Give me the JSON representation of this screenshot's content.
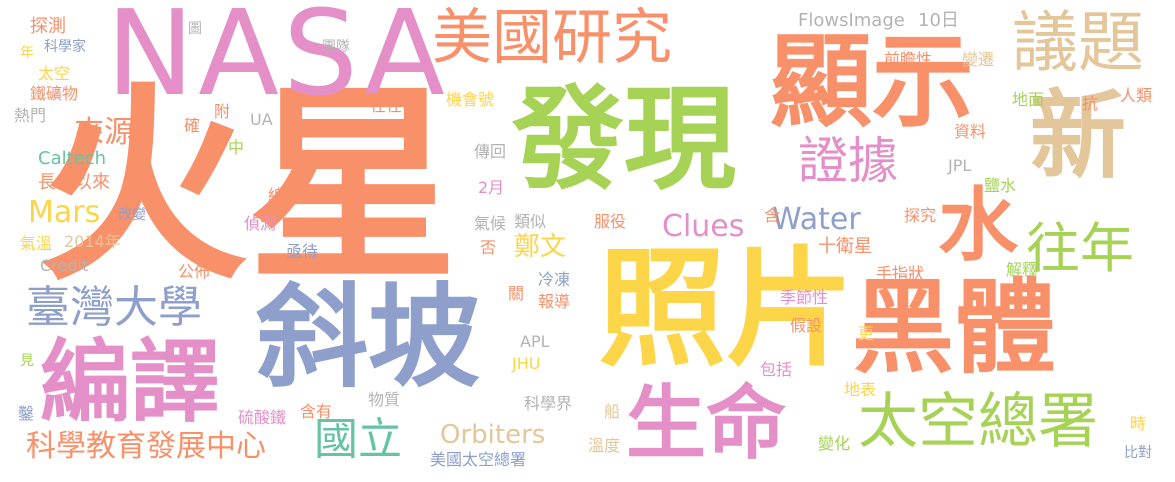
{
  "colors": {
    "orange": "#f8906a",
    "pink": "#e48fc8",
    "green": "#a6d356",
    "yellow": "#fcd548",
    "blue": "#8e9fcb",
    "tan": "#e3c699",
    "teal": "#66c3a5",
    "gray": "#b3b3b3"
  },
  "words": [
    {
      "text": "火星",
      "color": "orange"
    },
    {
      "text": "NASA",
      "color": "pink"
    },
    {
      "text": "發現",
      "color": "green"
    },
    {
      "text": "照片",
      "color": "yellow"
    },
    {
      "text": "斜坡",
      "color": "blue"
    },
    {
      "text": "顯示",
      "color": "orange"
    },
    {
      "text": "黑體",
      "color": "orange"
    },
    {
      "text": "新",
      "color": "tan"
    },
    {
      "text": "水",
      "color": "orange"
    },
    {
      "text": "美國研究",
      "color": "orange"
    },
    {
      "text": "議題",
      "color": "tan"
    },
    {
      "text": "生命",
      "color": "pink"
    },
    {
      "text": "編譯",
      "color": "pink"
    },
    {
      "text": "太空總署",
      "color": "green"
    },
    {
      "text": "往年",
      "color": "green"
    },
    {
      "text": "證據",
      "color": "pink"
    },
    {
      "text": "臺灣大學",
      "color": "blue"
    },
    {
      "text": "國立",
      "color": "teal"
    },
    {
      "text": "科學教育發展中心",
      "color": "orange"
    },
    {
      "text": "Water",
      "color": "blue"
    },
    {
      "text": "Clues",
      "color": "pink"
    },
    {
      "text": "Orbiters",
      "color": "tan"
    },
    {
      "text": "來源",
      "color": "orange"
    },
    {
      "text": "Mars",
      "color": "yellow"
    },
    {
      "text": "鄭文",
      "color": "yellow"
    },
    {
      "text": "FlowsImage",
      "color": "gray"
    },
    {
      "text": "10日",
      "color": "gray"
    },
    {
      "text": "十衛星",
      "color": "orange"
    },
    {
      "text": "Caltech",
      "color": "teal"
    },
    {
      "text": "長久以來",
      "color": "orange"
    },
    {
      "text": "熱門",
      "color": "gray"
    },
    {
      "text": "鐵礦物",
      "color": "orange"
    },
    {
      "text": "太空",
      "color": "yellow"
    },
    {
      "text": "科學家",
      "color": "blue"
    },
    {
      "text": "年",
      "color": "yellow"
    },
    {
      "text": "探測",
      "color": "orange"
    },
    {
      "text": "圖",
      "color": "gray"
    },
    {
      "text": "團隊",
      "color": "gray"
    },
    {
      "text": "確",
      "color": "orange"
    },
    {
      "text": "附",
      "color": "orange"
    },
    {
      "text": "UA",
      "color": "gray"
    },
    {
      "text": "中",
      "color": "green"
    },
    {
      "text": "鐵礦",
      "color": "orange"
    },
    {
      "text": "線索",
      "color": "orange"
    },
    {
      "text": "偵測",
      "color": "pink"
    },
    {
      "text": "亟待",
      "color": "blue"
    },
    {
      "text": "公佈",
      "color": "orange"
    },
    {
      "text": "改變",
      "color": "blue"
    },
    {
      "text": "氣溫",
      "color": "yellow"
    },
    {
      "text": "2014年",
      "color": "tan"
    },
    {
      "text": "Credit",
      "color": "gray"
    },
    {
      "text": "2月",
      "color": "pink"
    },
    {
      "text": "傳回",
      "color": "gray"
    },
    {
      "text": "在在",
      "color": "orange"
    },
    {
      "text": "機會號",
      "color": "yellow"
    },
    {
      "text": "類似",
      "color": "gray"
    },
    {
      "text": "氣候",
      "color": "gray"
    },
    {
      "text": "否",
      "color": "orange"
    },
    {
      "text": "服役",
      "color": "orange"
    },
    {
      "text": "冷凍",
      "color": "blue"
    },
    {
      "text": "報導",
      "color": "orange"
    },
    {
      "text": "關",
      "color": "orange"
    },
    {
      "text": "APL",
      "color": "gray"
    },
    {
      "text": "JHU",
      "color": "yellow"
    },
    {
      "text": "科學界",
      "color": "gray"
    },
    {
      "text": "物質",
      "color": "gray"
    },
    {
      "text": "含有",
      "color": "orange"
    },
    {
      "text": "硫酸鐵",
      "color": "pink"
    },
    {
      "text": "見",
      "color": "green"
    },
    {
      "text": "鑿",
      "color": "blue"
    },
    {
      "text": "美國太空總署",
      "color": "blue"
    },
    {
      "text": "溫度",
      "color": "tan"
    },
    {
      "text": "船",
      "color": "tan"
    },
    {
      "text": "前瞻性",
      "color": "orange"
    },
    {
      "text": "變遷",
      "color": "tan"
    },
    {
      "text": "地面",
      "color": "green"
    },
    {
      "text": "抗",
      "color": "orange"
    },
    {
      "text": "人類",
      "color": "orange"
    },
    {
      "text": "資料",
      "color": "orange"
    },
    {
      "text": "JPL",
      "color": "gray"
    },
    {
      "text": "鹽水",
      "color": "green"
    },
    {
      "text": "探究",
      "color": "orange"
    },
    {
      "text": "含",
      "color": "orange"
    },
    {
      "text": "手指狀",
      "color": "orange"
    },
    {
      "text": "解釋",
      "color": "green"
    },
    {
      "text": "季節性",
      "color": "pink"
    },
    {
      "text": "假設",
      "color": "orange"
    },
    {
      "text": "更",
      "color": "yellow"
    },
    {
      "text": "包括",
      "color": "pink"
    },
    {
      "text": "地表",
      "color": "yellow"
    },
    {
      "text": "變化",
      "color": "green"
    },
    {
      "text": "時",
      "color": "yellow"
    },
    {
      "text": "比對",
      "color": "blue"
    }
  ]
}
